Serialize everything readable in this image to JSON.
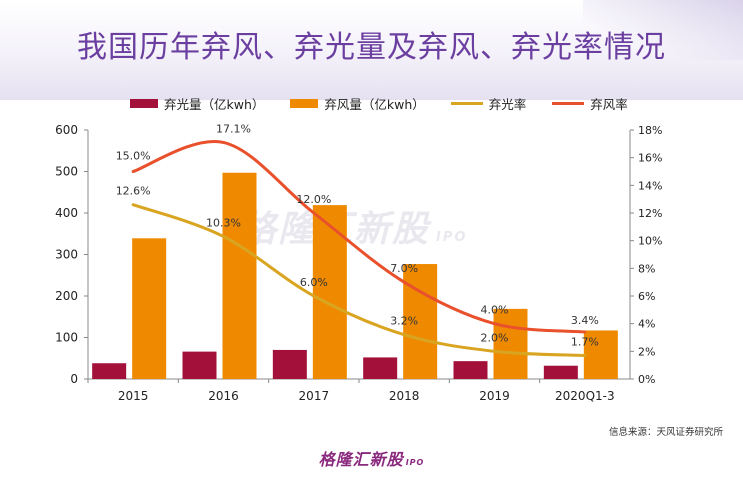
{
  "title": "我国历年弃风、弃光量及弃风、弃光率情况",
  "source": "信息来源：天风证券研究所",
  "logo": {
    "name": "格隆汇新股",
    "sub": "IPO"
  },
  "chart_data": {
    "type": "bar",
    "categories": [
      "2015",
      "2016",
      "2017",
      "2018",
      "2019",
      "2020Q1-3"
    ],
    "y_left": {
      "ylim": [
        0,
        600
      ],
      "ticks": [
        0,
        100,
        200,
        300,
        400,
        500,
        600
      ]
    },
    "y_right": {
      "ylim": [
        0,
        18
      ],
      "ticks": [
        "0%",
        "2%",
        "4%",
        "6%",
        "8%",
        "10%",
        "12%",
        "14%",
        "16%",
        "18%"
      ]
    },
    "series": [
      {
        "name": "弃光量（亿kwh）",
        "kind": "bar",
        "axis": "left",
        "color": "#a3103a",
        "values": [
          38,
          66,
          70,
          52,
          43,
          32
        ]
      },
      {
        "name": "弃风量（亿kwh）",
        "kind": "bar",
        "axis": "left",
        "color": "#ef8a00",
        "values": [
          339,
          497,
          419,
          277,
          169,
          117
        ]
      },
      {
        "name": "弃光率",
        "kind": "line",
        "axis": "right",
        "color": "#d9a520",
        "values": [
          12.6,
          10.3,
          6.0,
          3.2,
          2.0,
          1.7
        ],
        "labels": [
          "12.6%",
          "10.3%",
          "6.0%",
          "3.2%",
          "2.0%",
          "1.7%"
        ]
      },
      {
        "name": "弃风率",
        "kind": "line",
        "axis": "right",
        "color": "#e9502c",
        "values": [
          15.0,
          17.1,
          12.0,
          7.0,
          4.0,
          3.4
        ],
        "labels": [
          "15.0%",
          "17.1%",
          "12.0%",
          "7.0%",
          "4.0%",
          "3.4%"
        ]
      }
    ],
    "grid": false,
    "legend": "top"
  }
}
